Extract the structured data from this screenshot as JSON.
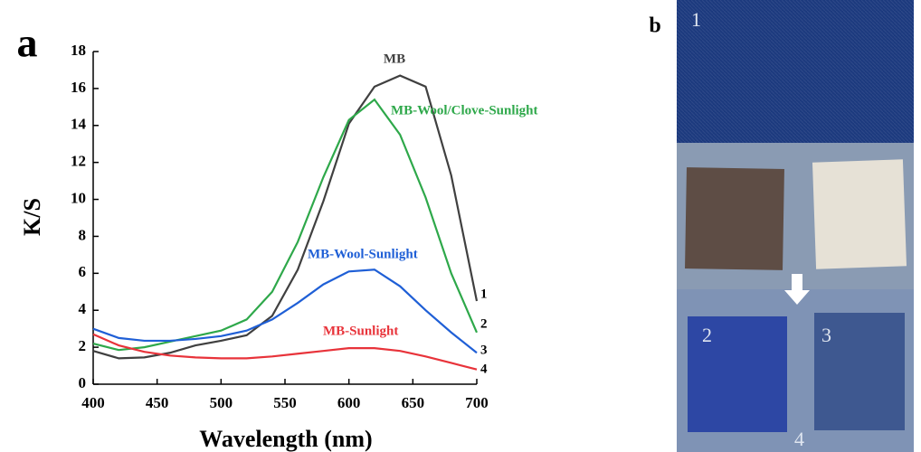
{
  "chart_data": {
    "type": "line",
    "panel_label": "a",
    "x_label": "Wavelength (nm)",
    "y_label": "K/S",
    "x": [
      400,
      420,
      440,
      460,
      480,
      500,
      520,
      540,
      560,
      580,
      600,
      620,
      640,
      660,
      680,
      700
    ],
    "series": [
      {
        "name": "MB",
        "end_label": "1",
        "color": "#404040",
        "values": [
          1.8,
          1.4,
          1.45,
          1.7,
          2.1,
          2.35,
          2.65,
          3.7,
          6.2,
          9.9,
          14.1,
          16.1,
          16.7,
          16.1,
          11.3,
          4.5
        ]
      },
      {
        "name": "MB-Wool/Clove-Sunlight",
        "end_label": "2",
        "color": "#2ea84a",
        "values": [
          2.2,
          1.85,
          2.0,
          2.3,
          2.6,
          2.9,
          3.5,
          5.0,
          7.7,
          11.2,
          14.3,
          15.4,
          13.5,
          10.1,
          6.0,
          2.8
        ]
      },
      {
        "name": "MB-Wool-Sunlight",
        "end_label": "3",
        "color": "#1f5fd6",
        "values": [
          3.0,
          2.5,
          2.35,
          2.35,
          2.45,
          2.6,
          2.9,
          3.5,
          4.4,
          5.4,
          6.1,
          6.2,
          5.3,
          4.0,
          2.8,
          1.7
        ]
      },
      {
        "name": "MB-Sunlight",
        "end_label": "4",
        "color": "#e8333a",
        "values": [
          2.7,
          2.1,
          1.75,
          1.55,
          1.45,
          1.4,
          1.4,
          1.5,
          1.65,
          1.8,
          1.95,
          1.95,
          1.8,
          1.5,
          1.15,
          0.8
        ]
      }
    ],
    "xlim": [
      400,
      700
    ],
    "xticks": [
      400,
      450,
      500,
      550,
      600,
      650,
      700
    ],
    "ylim": [
      0,
      18
    ],
    "yticks": [
      0,
      2,
      4,
      6,
      8,
      10,
      12,
      14,
      16,
      18
    ]
  },
  "photo": {
    "panel_label": "b",
    "labels": [
      "1",
      "2",
      "3",
      "4"
    ]
  }
}
